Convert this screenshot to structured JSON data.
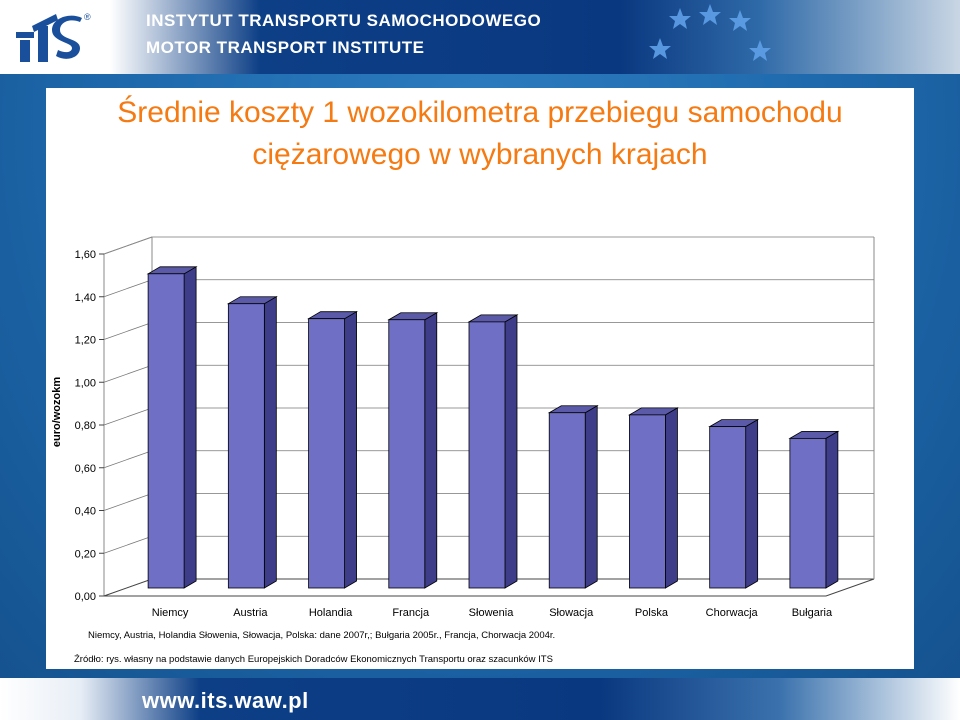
{
  "header": {
    "line_pl": "INSTYTUT TRANSPORTU SAMOCHODOWEGO",
    "line_en": "MOTOR TRANSPORT INSTITUTE",
    "logo_text": "ITS",
    "logo_mark": "®"
  },
  "slide": {
    "title_line1": "Średnie koszty 1 wozokilometra przebiegu samochodu",
    "title_line2": "ciężarowego w wybranych krajach"
  },
  "chart_data": {
    "type": "bar",
    "style": "3d-column",
    "ylabel": "euro/wozokm",
    "ylim": [
      0,
      1.6
    ],
    "yticks": [
      "0,00",
      "0,20",
      "0,40",
      "0,60",
      "0,80",
      "1,00",
      "1,20",
      "1,40",
      "1,60"
    ],
    "categories": [
      "Niemcy",
      "Austria",
      "Holandia",
      "Francja",
      "Słowenia",
      "Słowacja",
      "Polska",
      "Chorwacja",
      "Bułgaria"
    ],
    "values": [
      1.47,
      1.33,
      1.26,
      1.255,
      1.245,
      0.82,
      0.81,
      0.755,
      0.7
    ],
    "bar_color": "#6f6fc6",
    "grid": true,
    "note": "Niemcy, Austria, Holandia Słowenia, Słowacja, Polska: dane 2007r,; Bułgaria 2005r., Francja, Chorwacja 2004r.",
    "source": "Źródło: rys. własny na podstawie danych Europejskich Doradców Ekonomicznych Transportu oraz szacunków ITS"
  },
  "footer": {
    "url": "www.its.waw.pl"
  }
}
